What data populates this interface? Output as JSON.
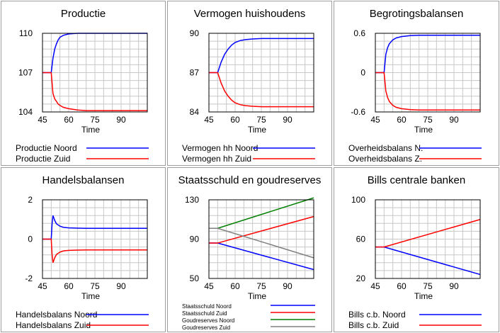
{
  "panels": [
    {
      "title": "Productie",
      "chart_data": {
        "type": "line",
        "xlabel": "Time",
        "xlim": [
          45,
          105
        ],
        "xticks": [
          45,
          60,
          75,
          90
        ],
        "ylim": [
          104,
          110
        ],
        "yticks": [
          104,
          107,
          110
        ],
        "ytick_labels": [
          "104",
          "107",
          "110"
        ],
        "grid": true,
        "legend_position": "bottom",
        "series": [
          {
            "name": "Productie Noord",
            "color": "#0000ff",
            "x": [
              45,
              50,
              51,
              52,
              53,
              54,
              55,
              57,
              60,
              65,
              70,
              80,
              105
            ],
            "y": [
              107,
              107,
              108.1,
              108.8,
              109.2,
              109.5,
              109.7,
              109.85,
              109.95,
              110,
              110,
              110,
              110
            ]
          },
          {
            "name": "Productie Zuid",
            "color": "#ff0000",
            "x": [
              45,
              50,
              51,
              52,
              53,
              54,
              55,
              57,
              60,
              65,
              70,
              80,
              105
            ],
            "y": [
              107,
              107,
              105.4,
              105.0,
              104.8,
              104.6,
              104.5,
              104.35,
              104.25,
              104.15,
              104.1,
              104.1,
              104.1
            ]
          }
        ]
      }
    },
    {
      "title": "Vermogen huishoudens",
      "chart_data": {
        "type": "line",
        "xlabel": "Time",
        "xlim": [
          45,
          105
        ],
        "xticks": [
          45,
          60,
          75,
          90
        ],
        "ylim": [
          84,
          90
        ],
        "yticks": [
          84,
          87,
          90
        ],
        "ytick_labels": [
          "84",
          "87",
          "90"
        ],
        "grid": true,
        "legend_position": "bottom",
        "series": [
          {
            "name": "Vermogen hh Noord",
            "color": "#0000ff",
            "x": [
              45,
              50,
              52,
              54,
              56,
              58,
              60,
              63,
              66,
              70,
              75,
              85,
              105
            ],
            "y": [
              87,
              87,
              87.8,
              88.4,
              88.8,
              89.1,
              89.3,
              89.45,
              89.52,
              89.57,
              89.6,
              89.6,
              89.6
            ]
          },
          {
            "name": "Vermogen hh Zuid",
            "color": "#ff0000",
            "x": [
              45,
              50,
              52,
              54,
              56,
              58,
              60,
              63,
              66,
              70,
              75,
              85,
              105
            ],
            "y": [
              87,
              87,
              86.2,
              85.6,
              85.2,
              84.9,
              84.7,
              84.55,
              84.48,
              84.43,
              84.4,
              84.4,
              84.4
            ]
          }
        ]
      }
    },
    {
      "title": "Begrotingsbalansen",
      "chart_data": {
        "type": "line",
        "xlabel": "Time",
        "xlim": [
          45,
          105
        ],
        "xticks": [
          45,
          60,
          75,
          90
        ],
        "ylim": [
          -0.6,
          0.6
        ],
        "yticks": [
          -0.6,
          0,
          0.6
        ],
        "ytick_labels": [
          "-0.6",
          "0",
          "0.6"
        ],
        "grid": true,
        "legend_position": "bottom",
        "series": [
          {
            "name": "Overheidsbalans N.",
            "color": "#0000ff",
            "x": [
              45,
              50,
              51,
              52,
              53,
              55,
              57,
              60,
              65,
              70,
              80,
              105
            ],
            "y": [
              0,
              0,
              0.28,
              0.38,
              0.44,
              0.5,
              0.53,
              0.55,
              0.565,
              0.57,
              0.57,
              0.57
            ]
          },
          {
            "name": "Overheidsbalans Z.",
            "color": "#ff0000",
            "x": [
              45,
              50,
              51,
              52,
              53,
              55,
              57,
              60,
              65,
              70,
              80,
              105
            ],
            "y": [
              0,
              0,
              -0.28,
              -0.38,
              -0.44,
              -0.5,
              -0.53,
              -0.55,
              -0.565,
              -0.57,
              -0.57,
              -0.57
            ]
          }
        ]
      }
    },
    {
      "title": "Handelsbalansen",
      "chart_data": {
        "type": "line",
        "xlabel": "Time",
        "xlim": [
          45,
          105
        ],
        "xticks": [
          45,
          60,
          75,
          90
        ],
        "ylim": [
          -2,
          2
        ],
        "yticks": [
          -2,
          0,
          2
        ],
        "ytick_labels": [
          "-2",
          "0",
          "2"
        ],
        "grid": true,
        "legend_position": "bottom",
        "series": [
          {
            "name": "Handelsbalans Noord",
            "color": "#0000ff",
            "x": [
              45,
              50,
              50.5,
              51,
              52,
              53,
              55,
              57,
              60,
              65,
              70,
              105
            ],
            "y": [
              0,
              0,
              0.8,
              1.2,
              0.95,
              0.78,
              0.66,
              0.6,
              0.57,
              0.56,
              0.55,
              0.55
            ]
          },
          {
            "name": "Handelsbalans Zuid",
            "color": "#ff0000",
            "x": [
              45,
              50,
              50.5,
              51,
              52,
              53,
              55,
              57,
              60,
              65,
              70,
              105
            ],
            "y": [
              0,
              0,
              -0.8,
              -1.2,
              -0.95,
              -0.78,
              -0.66,
              -0.6,
              -0.57,
              -0.56,
              -0.55,
              -0.55
            ]
          }
        ]
      }
    },
    {
      "title": "Staatsschuld en goudreserves",
      "chart_data": {
        "type": "line",
        "xlabel": "Time",
        "xlim": [
          45,
          105
        ],
        "xticks": [
          45,
          60,
          75,
          90
        ],
        "ylim": [
          50,
          130
        ],
        "yticks": [
          50,
          90,
          130
        ],
        "ytick_labels": [
          "50",
          "90",
          "130"
        ],
        "grid": true,
        "legend_position": "bottom",
        "series": [
          {
            "name": "Staatsschuld Noord",
            "color": "#0000ff",
            "x": [
              45,
              50,
              105
            ],
            "y": [
              86,
              86,
              59
            ]
          },
          {
            "name": "Staatsschuld Zuid",
            "color": "#ff0000",
            "x": [
              45,
              50,
              105
            ],
            "y": [
              86,
              86,
              113
            ]
          },
          {
            "name": "Goudreserves Noord",
            "color": "#008000",
            "x": [
              45,
              50,
              105
            ],
            "y": [
              101,
              101,
              132
            ]
          },
          {
            "name": "Goudreserves Zuid",
            "color": "#808080",
            "x": [
              45,
              50,
              105
            ],
            "y": [
              101,
              101,
              71
            ]
          }
        ]
      }
    },
    {
      "title": "Bills centrale banken",
      "chart_data": {
        "type": "line",
        "xlabel": "Time",
        "xlim": [
          45,
          105
        ],
        "xticks": [
          45,
          60,
          75,
          90
        ],
        "ylim": [
          20,
          100
        ],
        "yticks": [
          20,
          60,
          100
        ],
        "ytick_labels": [
          "20",
          "60",
          "100"
        ],
        "grid": true,
        "legend_position": "bottom",
        "series": [
          {
            "name": "Bills c.b. Noord",
            "color": "#0000ff",
            "x": [
              45,
              50,
              105
            ],
            "y": [
              52,
              52,
              24
            ]
          },
          {
            "name": "Bills c.b. Zuid",
            "color": "#ff0000",
            "x": [
              45,
              50,
              105
            ],
            "y": [
              52,
              52,
              80
            ]
          }
        ]
      }
    }
  ]
}
